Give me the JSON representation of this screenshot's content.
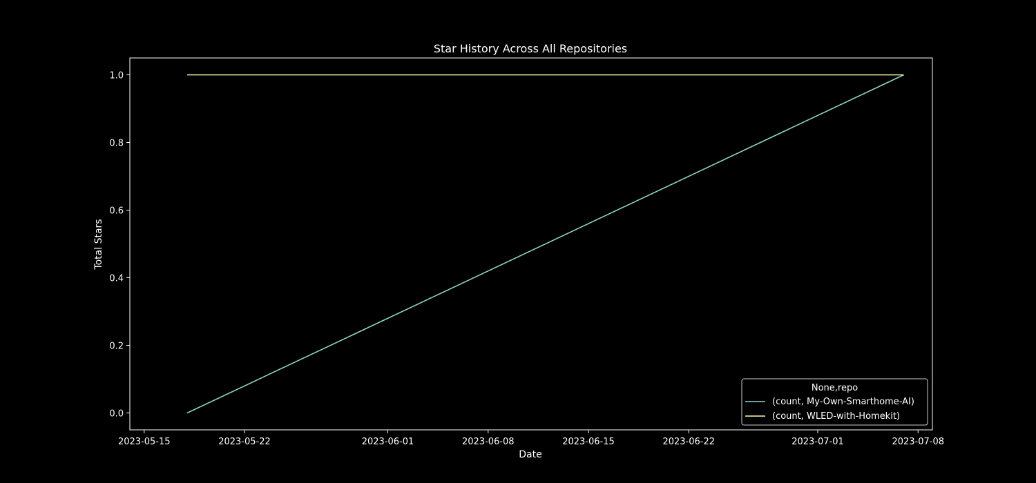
{
  "chart_data": {
    "type": "line",
    "title": "Star History Across All Repositories",
    "xlabel": "Date",
    "ylabel": "Total Stars",
    "x_type": "date",
    "xlim": [
      "2023-05-14",
      "2023-07-09"
    ],
    "ylim": [
      -0.05,
      1.05
    ],
    "x_ticks": [
      "2023-05-15",
      "2023-05-22",
      "2023-06-01",
      "2023-06-08",
      "2023-06-15",
      "2023-06-22",
      "2023-07-01",
      "2023-07-08"
    ],
    "y_ticks": [
      0.0,
      0.2,
      0.4,
      0.6,
      0.8,
      1.0
    ],
    "y_tick_labels": [
      "0.0",
      "0.2",
      "0.4",
      "0.6",
      "0.8",
      "1.0"
    ],
    "grid": false,
    "legend": {
      "title": "None,repo",
      "placement": "lower-right"
    },
    "series": [
      {
        "name": "(count, My-Own-Smarthome-AI)",
        "color": "#8dd3c7",
        "x": [
          "2023-05-18",
          "2023-07-07"
        ],
        "y": [
          0,
          1
        ]
      },
      {
        "name": "(count, WLED-with-Homekit)",
        "color": "#feffb3",
        "x": [
          "2023-05-18",
          "2023-07-07"
        ],
        "y": [
          1,
          1
        ]
      }
    ]
  }
}
